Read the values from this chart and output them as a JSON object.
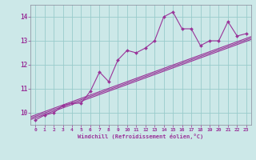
{
  "xlabel": "Windchill (Refroidissement éolien,°C)",
  "xlim": [
    -0.5,
    23.5
  ],
  "ylim": [
    9.5,
    14.5
  ],
  "yticks": [
    10,
    11,
    12,
    13,
    14
  ],
  "xticks": [
    0,
    1,
    2,
    3,
    4,
    5,
    6,
    7,
    8,
    9,
    10,
    11,
    12,
    13,
    14,
    15,
    16,
    17,
    18,
    19,
    20,
    21,
    22,
    23
  ],
  "bg_color": "#cce8e8",
  "line_color": "#993399",
  "grid_color": "#99cccc",
  "data_x": [
    0,
    1,
    2,
    3,
    4,
    5,
    6,
    7,
    8,
    9,
    10,
    11,
    12,
    13,
    14,
    15,
    16,
    17,
    18,
    19,
    20,
    21,
    22,
    23
  ],
  "data_y": [
    9.7,
    9.9,
    10.0,
    10.3,
    10.4,
    10.4,
    10.9,
    11.7,
    11.3,
    12.2,
    12.6,
    12.5,
    12.7,
    13.0,
    14.0,
    14.2,
    13.5,
    13.5,
    12.8,
    13.0,
    13.0,
    13.8,
    13.2,
    13.3
  ],
  "reg_lines": [
    [
      9.72,
      13.05
    ],
    [
      9.78,
      13.11
    ],
    [
      9.84,
      13.17
    ]
  ],
  "font_size_x": 4.5,
  "font_size_y": 5.5,
  "font_size_label": 5.0
}
